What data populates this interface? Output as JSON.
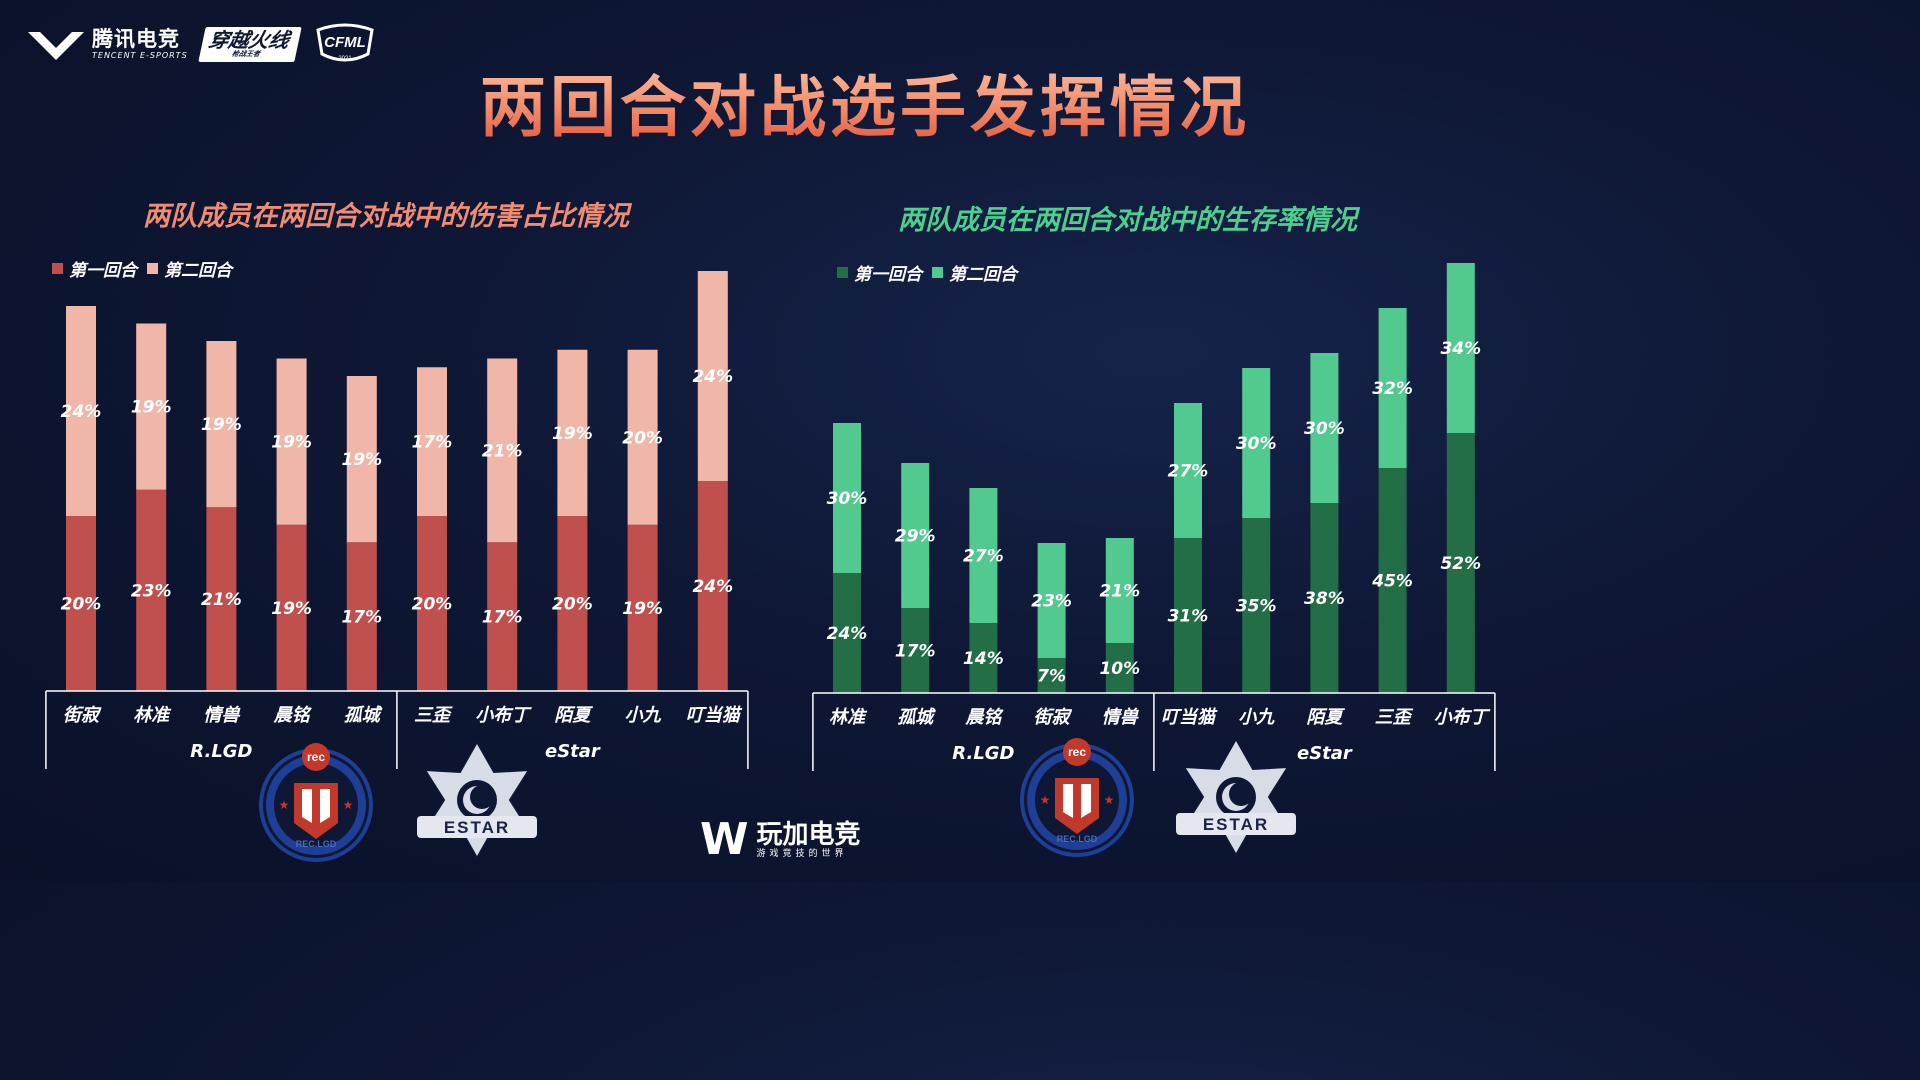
{
  "header": {
    "tencent_logo": "腾讯电竞",
    "tencent_logo_en": "TENCENT E-SPORTS",
    "cf_logo": "穿越火线",
    "cf_logo_sub": "枪战王者",
    "cfml_logo": "CFML",
    "cfml_year": "2021",
    "title": "两回合对战选手发挥情况"
  },
  "footer": {
    "logo_mark": "W",
    "logo_text": "玩加电竞",
    "logo_sub": "游戏竞技的世界"
  },
  "colors": {
    "damage_round1": "#c0504d",
    "damage_round2": "#f0b6a8",
    "survival_round1": "#236e46",
    "survival_round2": "#52c98f",
    "damage_title": "#f08b74",
    "survival_title": "#4fcf8e"
  },
  "team_logos": {
    "rlgd_badge": "rec",
    "rlgd_ring": "REC.LGD",
    "estar_badge": "ESTAR"
  },
  "chart_data": [
    {
      "type": "bar",
      "stacked": true,
      "title": "两队成员在两回合对战中的伤害占比情况",
      "categories": [
        "街寂",
        "林准",
        "情兽",
        "晨铭",
        "孤城",
        "三歪",
        "小布丁",
        "陌夏",
        "小九",
        "叮当猫"
      ],
      "groups": [
        {
          "name": "R.LGD",
          "categories": [
            "街寂",
            "林准",
            "情兽",
            "晨铭",
            "孤城"
          ]
        },
        {
          "name": "eStar",
          "categories": [
            "三歪",
            "小布丁",
            "陌夏",
            "小九",
            "叮当猫"
          ]
        }
      ],
      "series": [
        {
          "name": "第一回合",
          "values": [
            20,
            23,
            21,
            19,
            17,
            20,
            17,
            20,
            19,
            24
          ],
          "labels": [
            "20%",
            "23%",
            "21%",
            "19%",
            "17%",
            "20%",
            "17%",
            "20%",
            "19%",
            "24%"
          ]
        },
        {
          "name": "第二回合",
          "values": [
            24,
            19,
            19,
            19,
            19,
            17,
            21,
            19,
            20,
            24
          ],
          "labels": [
            "24%",
            "19%",
            "19%",
            "19%",
            "19%",
            "17%",
            "21%",
            "19%",
            "20%",
            "24%"
          ]
        }
      ],
      "legend": "top-left",
      "grid": false
    },
    {
      "type": "bar",
      "stacked": true,
      "title": "两队成员在两回合对战中的生存率情况",
      "categories": [
        "林准",
        "孤城",
        "晨铭",
        "街寂",
        "情兽",
        "叮当猫",
        "小九",
        "陌夏",
        "三歪",
        "小布丁"
      ],
      "groups": [
        {
          "name": "R.LGD",
          "categories": [
            "林准",
            "孤城",
            "晨铭",
            "街寂",
            "情兽"
          ]
        },
        {
          "name": "eStar",
          "categories": [
            "叮当猫",
            "小九",
            "陌夏",
            "三歪",
            "小布丁"
          ]
        }
      ],
      "series": [
        {
          "name": "第一回合",
          "values": [
            24,
            17,
            14,
            7,
            10,
            31,
            35,
            38,
            45,
            52
          ],
          "labels": [
            "24%",
            "17%",
            "14%",
            "7%",
            "10%",
            "31%",
            "35%",
            "38%",
            "45%",
            "52%"
          ]
        },
        {
          "name": "第二回合",
          "values": [
            30,
            29,
            27,
            23,
            21,
            27,
            30,
            30,
            32,
            34
          ],
          "labels": [
            "30%",
            "29%",
            "27%",
            "23%",
            "21%",
            "27%",
            "30%",
            "30%",
            "32%",
            "34%"
          ]
        }
      ],
      "legend": "top-left",
      "grid": false
    }
  ]
}
